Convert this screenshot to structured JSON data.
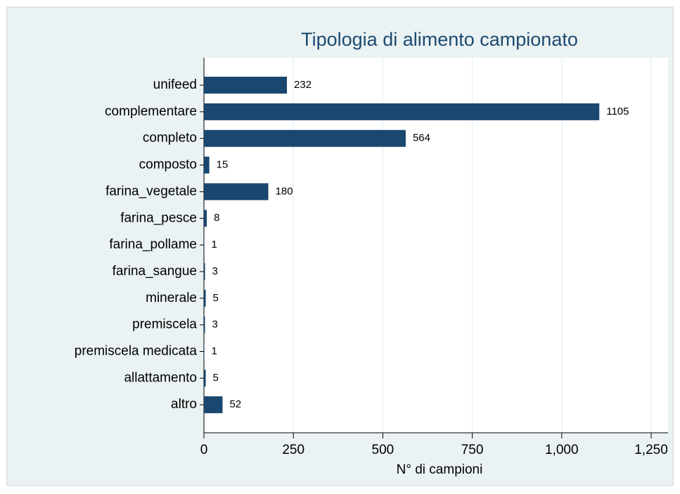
{
  "chart_data": {
    "type": "hbar",
    "title": "Tipologia di alimento campionato",
    "x_label": "N° di campioni",
    "categories": [
      "unifeed",
      "complementare",
      "completo",
      "composto",
      "farina_vegetale",
      "farina_pesce",
      "farina_pollame",
      "farina_sangue",
      "minerale",
      "premiscela",
      "premiscela medicata",
      "allattamento",
      "altro"
    ],
    "values": [
      232,
      1105,
      564,
      15,
      180,
      8,
      1,
      3,
      5,
      3,
      1,
      5,
      52
    ],
    "color": "#1a476f",
    "xlim": [
      0,
      1250
    ],
    "xticks": [
      0,
      250,
      500,
      750,
      {
        "value": 1000,
        "label": "1,000"
      },
      {
        "value": 1250,
        "label": "1,250"
      }
    ],
    "grid": true
  }
}
